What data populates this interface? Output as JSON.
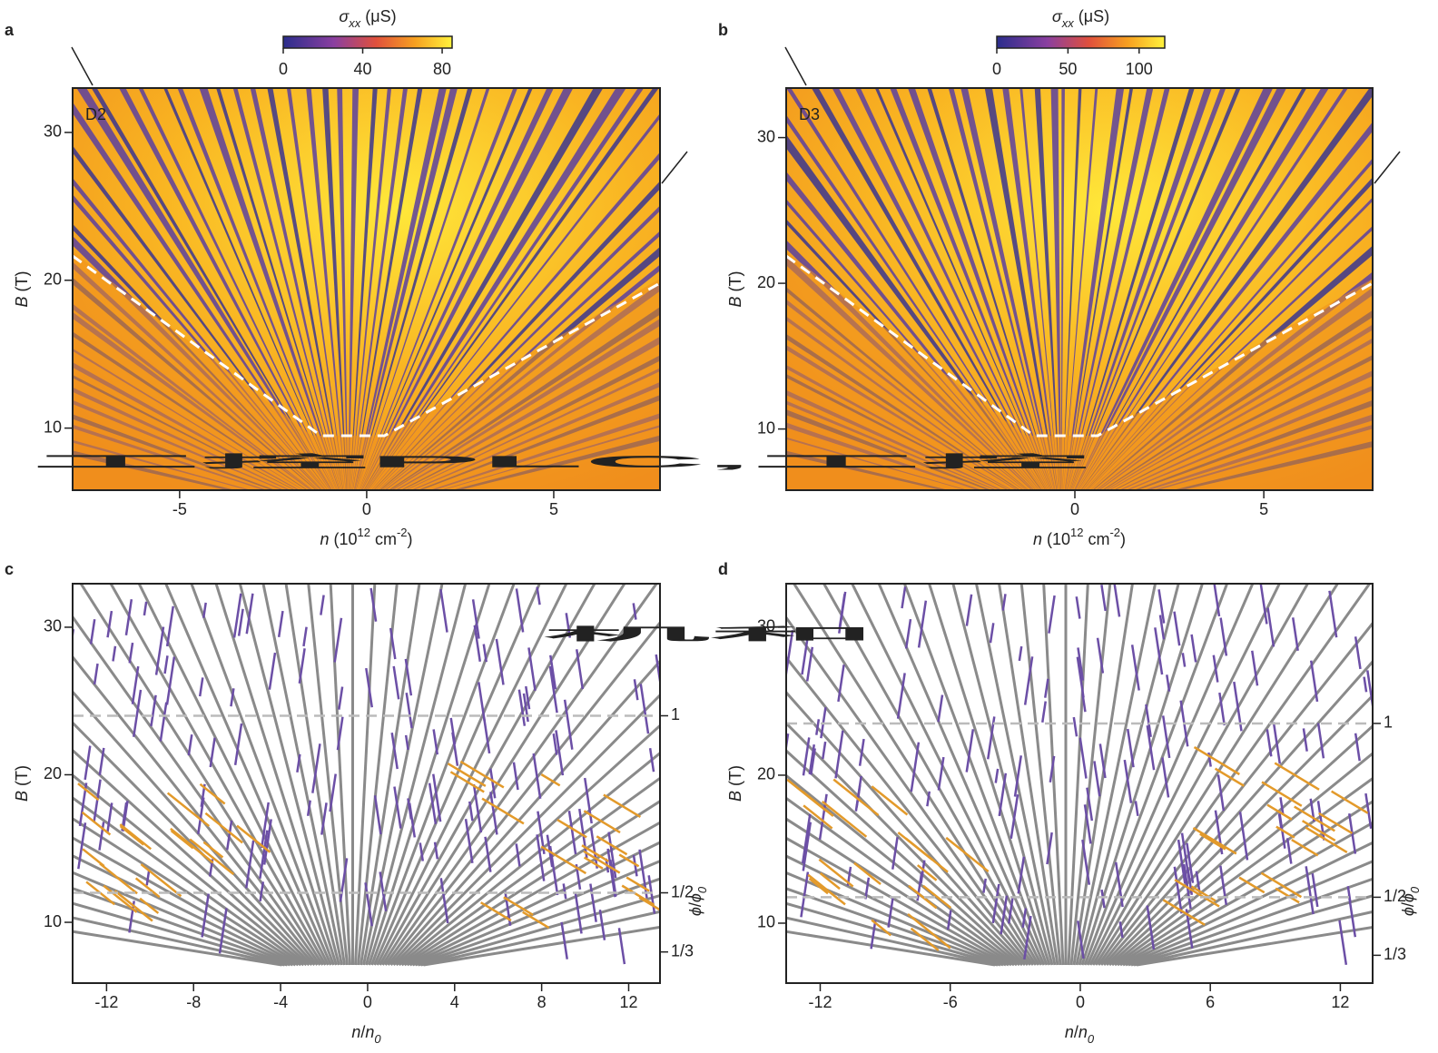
{
  "chart_data": [
    {
      "type": "heatmap",
      "panel": "a",
      "inset": "D2",
      "xlabel": [
        "n",
        " (10",
        "12",
        " cm",
        "-2",
        ")"
      ],
      "ylabel": [
        "B",
        " (T)"
      ],
      "xlim": [
        -7.86,
        7.84
      ],
      "xticks": [
        -5,
        0,
        5
      ],
      "ylim": [
        5.8,
        33
      ],
      "yticks": [
        10,
        20,
        30
      ],
      "colorbar": {
        "label": [
          "σ",
          "xx",
          " (μS)"
        ],
        "lim": [
          0,
          85
        ],
        "ticks": [
          0,
          40,
          80
        ]
      }
    },
    {
      "type": "heatmap",
      "panel": "b",
      "inset": "D3",
      "xlabel": [
        "n",
        " (10",
        "12",
        " cm",
        "-2",
        ")"
      ],
      "ylabel": [
        "B",
        " (T)"
      ],
      "xlim": [
        -7.64,
        7.88
      ],
      "xticks": [
        0,
        5
      ],
      "ylim": [
        5.8,
        33.4
      ],
      "yticks": [
        10,
        20,
        30
      ],
      "colorbar": {
        "label": [
          "σ",
          "xx",
          " (μS)"
        ],
        "lim": [
          0,
          118
        ],
        "ticks": [
          0,
          50,
          100
        ]
      }
    },
    {
      "type": "fan",
      "panel": "c",
      "xlabel": [
        "n",
        "/",
        "n",
        "0"
      ],
      "ylabel": [
        "B",
        " (T)"
      ],
      "y2label": [
        "ϕ",
        "/",
        "ϕ",
        "0"
      ],
      "xlim": [
        -13.56,
        13.44
      ],
      "xticks": [
        -12,
        -8,
        -4,
        0,
        4,
        8,
        12
      ],
      "ylim": [
        5.88,
        32.95
      ],
      "yticks": [
        10,
        20,
        30
      ],
      "y2lim": [
        0.245,
        1.373
      ],
      "y2ticks": [
        1,
        {
          "value": 0.5,
          "label": "1/2"
        },
        {
          "value": 0.333,
          "label": "1/3"
        }
      ]
    },
    {
      "type": "fan",
      "panel": "d",
      "xlabel": [
        "n",
        "/",
        "n",
        "0"
      ],
      "ylabel": [
        "B",
        " (T)"
      ],
      "y2label": [
        "ϕ",
        "/",
        "ϕ",
        "0"
      ],
      "xlim": [
        -13.57,
        13.49
      ],
      "xticks": [
        -12,
        -6,
        0,
        6,
        12
      ],
      "ylim": [
        5.95,
        32.94
      ],
      "yticks": [
        10,
        20,
        30
      ],
      "y2lim": [
        0.253,
        1.402
      ],
      "y2ticks": [
        1,
        {
          "value": 0.5,
          "label": "1/2"
        },
        {
          "value": 0.333,
          "label": "1/3"
        }
      ]
    }
  ],
  "overlay": {
    "lines": [
      "工控PLC,工控",
      "机和"
    ],
    "color": "#ee1bee"
  }
}
